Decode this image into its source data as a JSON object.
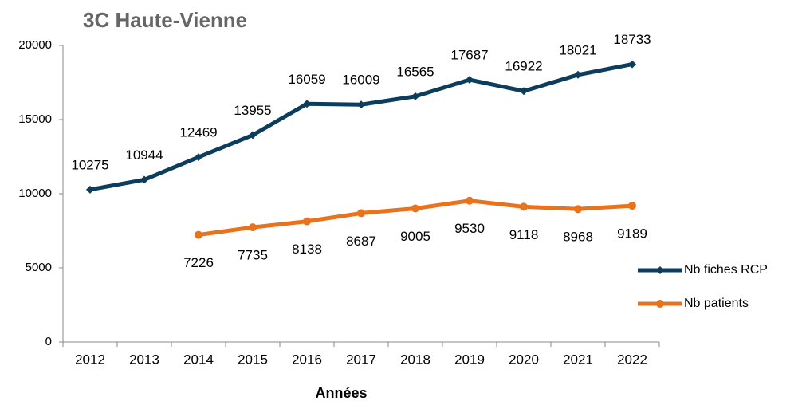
{
  "chart_data": {
    "type": "line",
    "title": "3C Haute-Vienne",
    "x_label": "Années",
    "categories": [
      "2012",
      "2013",
      "2014",
      "2015",
      "2016",
      "2017",
      "2018",
      "2019",
      "2020",
      "2021",
      "2022"
    ],
    "series": [
      {
        "name": "Nb fiches RCP",
        "color": "#0d3d5c",
        "marker": "diamond",
        "label_position": "above",
        "values": [
          10275,
          10944,
          12469,
          13955,
          16059,
          16009,
          16565,
          17687,
          16922,
          18021,
          18733
        ]
      },
      {
        "name": "Nb patients",
        "color": "#e8731c",
        "marker": "circle",
        "label_position": "below",
        "values": [
          null,
          null,
          7226,
          7735,
          8138,
          8687,
          9005,
          9530,
          9118,
          8968,
          9189
        ]
      }
    ],
    "ylim": [
      0,
      20000
    ],
    "yticks": [
      0,
      5000,
      10000,
      15000,
      20000
    ],
    "grid": false,
    "legend": "right"
  }
}
